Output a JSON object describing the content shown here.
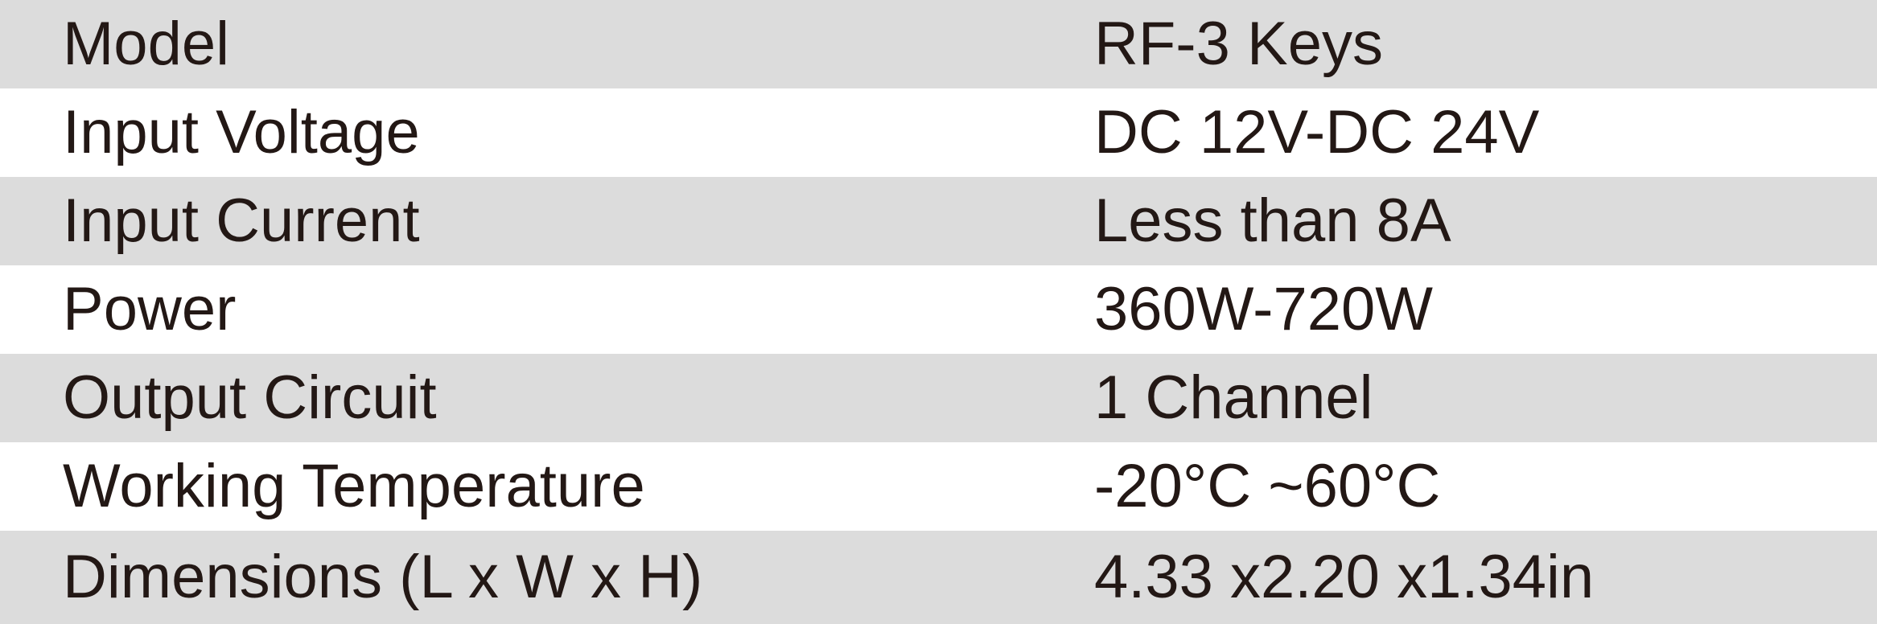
{
  "specs": [
    {
      "label": "Model",
      "value": "RF-3 Keys"
    },
    {
      "label": "Input Voltage",
      "value": "DC 12V-DC 24V"
    },
    {
      "label": "Input Current",
      "value": "Less than 8A"
    },
    {
      "label": "Power",
      "value": "360W-720W"
    },
    {
      "label": "Output Circuit",
      "value": "1 Channel"
    },
    {
      "label": "Working Temperature",
      "value": "-20°C ~60°C"
    },
    {
      "label": "Dimensions (L x W x H)",
      "value": "4.33 x2.20 x1.34in"
    }
  ],
  "colors": {
    "shaded_row": "#dcdcdc",
    "plain_row": "#ffffff",
    "text": "#231815"
  }
}
